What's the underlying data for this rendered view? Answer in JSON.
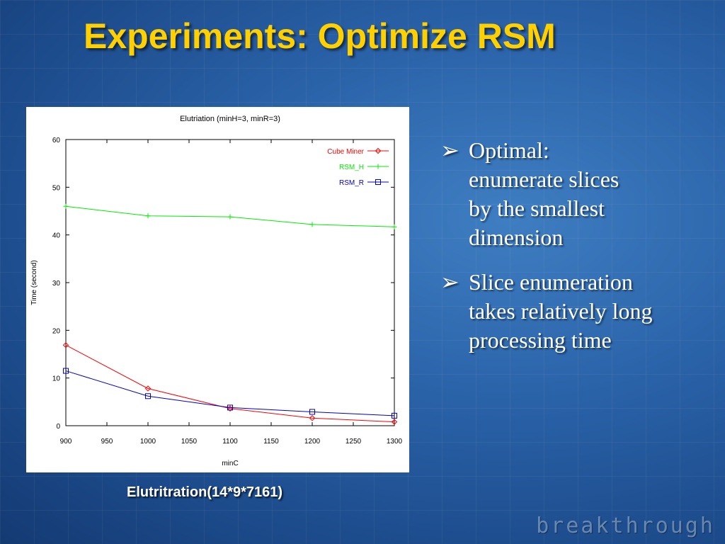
{
  "slide": {
    "title": "Experiments: Optimize RSM",
    "caption": "Elutritration(14*9*7161)",
    "brand": "breakthrough",
    "bullets": [
      {
        "marker": "➢",
        "lines": [
          "Optimal:",
          "enumerate slices",
          "by the smallest",
          "dimension"
        ]
      },
      {
        "marker": "➢",
        "lines": [
          "Slice enumeration",
          "takes relatively long",
          "processing time"
        ]
      }
    ]
  },
  "chart_data": {
    "type": "line",
    "title": "Elutriation (minH=3, minR=3)",
    "xlabel": "minC",
    "ylabel": "Time (second)",
    "xlim": [
      900,
      1300
    ],
    "ylim": [
      0,
      60
    ],
    "xticks": [
      900,
      950,
      1000,
      1050,
      1100,
      1150,
      1200,
      1250,
      1300
    ],
    "yticks": [
      0,
      10,
      20,
      30,
      40,
      50,
      60
    ],
    "grid": false,
    "legend_position": "top-right",
    "x": [
      900,
      1000,
      1100,
      1200,
      1300
    ],
    "series": [
      {
        "name": "Cube Miner",
        "color": "#ff0000",
        "marker": "diamond",
        "values": [
          16.9,
          7.8,
          3.6,
          1.6,
          0.8
        ]
      },
      {
        "name": "RSM_H",
        "color": "#00ee00",
        "marker": "plus",
        "values": [
          46.0,
          44.0,
          43.8,
          42.2,
          41.7
        ]
      },
      {
        "name": "RSM_R",
        "color": "#0000cc",
        "marker": "square",
        "values": [
          11.5,
          6.2,
          3.8,
          2.9,
          2.1
        ]
      }
    ]
  }
}
